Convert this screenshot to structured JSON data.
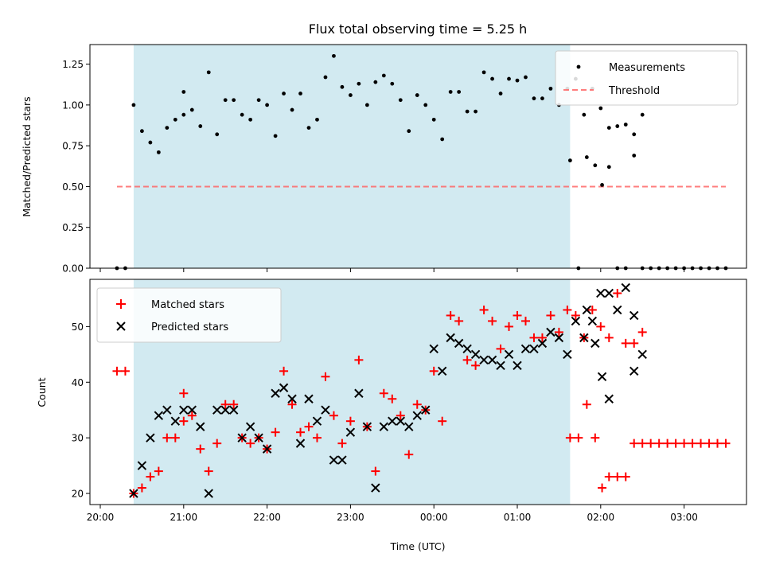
{
  "chart_data": [
    {
      "type": "scatter",
      "title": "Flux total observing time = 5.25 h",
      "xlabel": "",
      "ylabel": "Matched/Predicted stars",
      "xlim": [
        "20:00",
        "03:45"
      ],
      "ylim": [
        0,
        1.37
      ],
      "yticks": [
        "0.00",
        "0.25",
        "0.50",
        "0.75",
        "1.00",
        "1.25"
      ],
      "shaded_interval": {
        "from": "20:24",
        "to": "01:38",
        "color": "#add8e6"
      },
      "legend_position": "top-right",
      "series": [
        {
          "name": "Measurements",
          "marker": "dot",
          "color": "#000000",
          "points": [
            [
              "20:12",
              0.0
            ],
            [
              "20:18",
              0.0
            ],
            [
              "20:24",
              1.0
            ],
            [
              "20:30",
              0.84
            ],
            [
              "20:36",
              0.77
            ],
            [
              "20:42",
              0.71
            ],
            [
              "20:48",
              0.86
            ],
            [
              "20:54",
              0.91
            ],
            [
              "21:00",
              0.94
            ],
            [
              "21:00",
              1.08
            ],
            [
              "21:06",
              0.97
            ],
            [
              "21:12",
              0.87
            ],
            [
              "21:18",
              1.2
            ],
            [
              "21:24",
              0.82
            ],
            [
              "21:30",
              1.03
            ],
            [
              "21:36",
              1.03
            ],
            [
              "21:42",
              0.94
            ],
            [
              "21:48",
              0.91
            ],
            [
              "21:54",
              1.03
            ],
            [
              "22:00",
              1.0
            ],
            [
              "22:06",
              0.81
            ],
            [
              "22:12",
              1.07
            ],
            [
              "22:18",
              0.97
            ],
            [
              "22:24",
              1.07
            ],
            [
              "22:30",
              0.86
            ],
            [
              "22:36",
              0.91
            ],
            [
              "22:42",
              1.17
            ],
            [
              "22:48",
              1.3
            ],
            [
              "22:54",
              1.11
            ],
            [
              "23:00",
              1.06
            ],
            [
              "23:06",
              1.13
            ],
            [
              "23:12",
              1.0
            ],
            [
              "23:18",
              1.14
            ],
            [
              "23:24",
              1.18
            ],
            [
              "23:30",
              1.13
            ],
            [
              "23:36",
              1.03
            ],
            [
              "23:42",
              0.84
            ],
            [
              "23:48",
              1.06
            ],
            [
              "23:54",
              1.0
            ],
            [
              "00:00",
              0.91
            ],
            [
              "00:06",
              0.79
            ],
            [
              "00:12",
              1.08
            ],
            [
              "00:18",
              1.08
            ],
            [
              "00:24",
              0.96
            ],
            [
              "00:30",
              0.96
            ],
            [
              "00:36",
              1.2
            ],
            [
              "00:42",
              1.16
            ],
            [
              "00:48",
              1.07
            ],
            [
              "00:54",
              1.16
            ],
            [
              "01:00",
              1.15
            ],
            [
              "01:06",
              1.17
            ],
            [
              "01:12",
              1.04
            ],
            [
              "01:18",
              1.04
            ],
            [
              "01:24",
              1.1
            ],
            [
              "01:30",
              1.0
            ],
            [
              "01:36",
              1.1
            ],
            [
              "01:42",
              1.16
            ],
            [
              "01:48",
              0.94
            ],
            [
              "01:54",
              1.1
            ],
            [
              "02:00",
              0.98
            ],
            [
              "02:06",
              0.86
            ],
            [
              "02:12",
              0.87
            ],
            [
              "02:18",
              0.88
            ],
            [
              "02:24",
              0.82
            ],
            [
              "02:30",
              0.94
            ],
            [
              "01:38",
              0.66
            ],
            [
              "01:44",
              0.0
            ],
            [
              "01:50",
              0.68
            ],
            [
              "01:56",
              0.63
            ],
            [
              "02:01",
              0.51
            ],
            [
              "02:06",
              0.62
            ],
            [
              "02:12",
              0.0
            ],
            [
              "02:18",
              0.0
            ],
            [
              "02:24",
              0.69
            ],
            [
              "02:30",
              0.0
            ],
            [
              "02:36",
              0.0
            ],
            [
              "02:42",
              0.0
            ],
            [
              "02:48",
              0.0
            ],
            [
              "02:54",
              0.0
            ],
            [
              "03:00",
              0.0
            ],
            [
              "03:06",
              0.0
            ],
            [
              "03:12",
              0.0
            ],
            [
              "03:18",
              0.0
            ],
            [
              "03:24",
              0.0
            ],
            [
              "03:30",
              0.0
            ]
          ]
        },
        {
          "name": "Threshold",
          "marker": "dashed-line",
          "color": "#ff6666",
          "points": [
            [
              "20:12",
              0.5
            ],
            [
              "03:30",
              0.5
            ]
          ]
        }
      ]
    },
    {
      "type": "scatter",
      "title": "",
      "xlabel": "Time (UTC)",
      "ylabel": "Count",
      "xlim": [
        "20:00",
        "03:45"
      ],
      "ylim": [
        18,
        58.5
      ],
      "yticks": [
        "20",
        "30",
        "40",
        "50"
      ],
      "xticks": [
        "20:00",
        "21:00",
        "22:00",
        "23:00",
        "00:00",
        "01:00",
        "02:00",
        "03:00"
      ],
      "shaded_interval": {
        "from": "20:24",
        "to": "01:38",
        "color": "#add8e6"
      },
      "legend_position": "top-left",
      "series": [
        {
          "name": "Matched stars",
          "marker": "plus",
          "color": "#ff0000",
          "points": [
            [
              "20:12",
              42
            ],
            [
              "20:18",
              42
            ],
            [
              "20:24",
              20
            ],
            [
              "20:30",
              21
            ],
            [
              "20:36",
              23
            ],
            [
              "20:42",
              24
            ],
            [
              "20:48",
              30
            ],
            [
              "20:54",
              30
            ],
            [
              "21:00",
              33
            ],
            [
              "21:00",
              38
            ],
            [
              "21:06",
              34
            ],
            [
              "21:12",
              28
            ],
            [
              "21:18",
              24
            ],
            [
              "21:24",
              29
            ],
            [
              "21:30",
              36
            ],
            [
              "21:36",
              36
            ],
            [
              "21:42",
              30
            ],
            [
              "21:48",
              29
            ],
            [
              "21:54",
              30
            ],
            [
              "22:00",
              28
            ],
            [
              "22:06",
              31
            ],
            [
              "22:12",
              42
            ],
            [
              "22:18",
              36
            ],
            [
              "22:24",
              31
            ],
            [
              "22:30",
              32
            ],
            [
              "22:36",
              30
            ],
            [
              "22:42",
              41
            ],
            [
              "22:48",
              34
            ],
            [
              "22:54",
              29
            ],
            [
              "23:00",
              33
            ],
            [
              "23:06",
              44
            ],
            [
              "23:12",
              32
            ],
            [
              "23:18",
              24
            ],
            [
              "23:24",
              38
            ],
            [
              "23:30",
              37
            ],
            [
              "23:36",
              34
            ],
            [
              "23:42",
              27
            ],
            [
              "23:48",
              36
            ],
            [
              "23:54",
              35
            ],
            [
              "00:00",
              42
            ],
            [
              "00:06",
              33
            ],
            [
              "00:12",
              52
            ],
            [
              "00:18",
              51
            ],
            [
              "00:24",
              44
            ],
            [
              "00:30",
              43
            ],
            [
              "00:36",
              53
            ],
            [
              "00:42",
              51
            ],
            [
              "00:48",
              46
            ],
            [
              "00:54",
              50
            ],
            [
              "01:00",
              52
            ],
            [
              "01:06",
              51
            ],
            [
              "01:12",
              48
            ],
            [
              "01:18",
              48
            ],
            [
              "01:24",
              52
            ],
            [
              "01:30",
              49
            ],
            [
              "01:36",
              53
            ],
            [
              "01:42",
              52
            ],
            [
              "01:48",
              48
            ],
            [
              "01:54",
              53
            ],
            [
              "02:00",
              50
            ],
            [
              "02:06",
              48
            ],
            [
              "02:12",
              56
            ],
            [
              "02:18",
              47
            ],
            [
              "02:24",
              47
            ],
            [
              "02:30",
              49
            ],
            [
              "01:38",
              30
            ],
            [
              "01:44",
              30
            ],
            [
              "01:50",
              36
            ],
            [
              "01:56",
              30
            ],
            [
              "02:01",
              21
            ],
            [
              "02:06",
              23
            ],
            [
              "02:12",
              23
            ],
            [
              "02:18",
              23
            ],
            [
              "02:24",
              29
            ],
            [
              "02:30",
              29
            ],
            [
              "02:36",
              29
            ],
            [
              "02:42",
              29
            ],
            [
              "02:48",
              29
            ],
            [
              "02:54",
              29
            ],
            [
              "03:00",
              29
            ],
            [
              "03:06",
              29
            ],
            [
              "03:12",
              29
            ],
            [
              "03:18",
              29
            ],
            [
              "03:24",
              29
            ],
            [
              "03:30",
              29
            ]
          ]
        },
        {
          "name": "Predicted stars",
          "marker": "x",
          "color": "#000000",
          "points": [
            [
              "20:24",
              20
            ],
            [
              "20:30",
              25
            ],
            [
              "20:36",
              30
            ],
            [
              "20:42",
              34
            ],
            [
              "20:48",
              35
            ],
            [
              "20:54",
              33
            ],
            [
              "21:00",
              35
            ],
            [
              "21:06",
              35
            ],
            [
              "21:12",
              32
            ],
            [
              "21:18",
              20
            ],
            [
              "21:24",
              35
            ],
            [
              "21:30",
              35
            ],
            [
              "21:36",
              35
            ],
            [
              "21:42",
              30
            ],
            [
              "21:48",
              32
            ],
            [
              "21:54",
              30
            ],
            [
              "22:00",
              28
            ],
            [
              "22:06",
              38
            ],
            [
              "22:12",
              39
            ],
            [
              "22:18",
              37
            ],
            [
              "22:24",
              29
            ],
            [
              "22:30",
              37
            ],
            [
              "22:36",
              33
            ],
            [
              "22:42",
              35
            ],
            [
              "22:48",
              26
            ],
            [
              "22:54",
              26
            ],
            [
              "23:00",
              31
            ],
            [
              "23:06",
              38
            ],
            [
              "23:12",
              32
            ],
            [
              "23:18",
              21
            ],
            [
              "23:24",
              32
            ],
            [
              "23:30",
              33
            ],
            [
              "23:36",
              33
            ],
            [
              "23:42",
              32
            ],
            [
              "23:48",
              34
            ],
            [
              "23:54",
              35
            ],
            [
              "00:00",
              46
            ],
            [
              "00:06",
              42
            ],
            [
              "00:12",
              48
            ],
            [
              "00:18",
              47
            ],
            [
              "00:24",
              46
            ],
            [
              "00:30",
              45
            ],
            [
              "00:36",
              44
            ],
            [
              "00:42",
              44
            ],
            [
              "00:48",
              43
            ],
            [
              "00:54",
              45
            ],
            [
              "01:00",
              43
            ],
            [
              "01:06",
              46
            ],
            [
              "01:12",
              46
            ],
            [
              "01:18",
              47
            ],
            [
              "01:24",
              49
            ],
            [
              "01:30",
              48
            ],
            [
              "01:36",
              45
            ],
            [
              "01:42",
              51
            ],
            [
              "01:48",
              48
            ],
            [
              "01:54",
              51
            ],
            [
              "02:00",
              56
            ],
            [
              "02:06",
              56
            ],
            [
              "02:12",
              53
            ],
            [
              "02:18",
              57
            ],
            [
              "02:24",
              52
            ],
            [
              "02:30",
              45
            ],
            [
              "01:50",
              53
            ],
            [
              "01:56",
              47
            ],
            [
              "02:01",
              41
            ],
            [
              "02:06",
              37
            ],
            [
              "02:24",
              42
            ]
          ]
        }
      ]
    }
  ]
}
